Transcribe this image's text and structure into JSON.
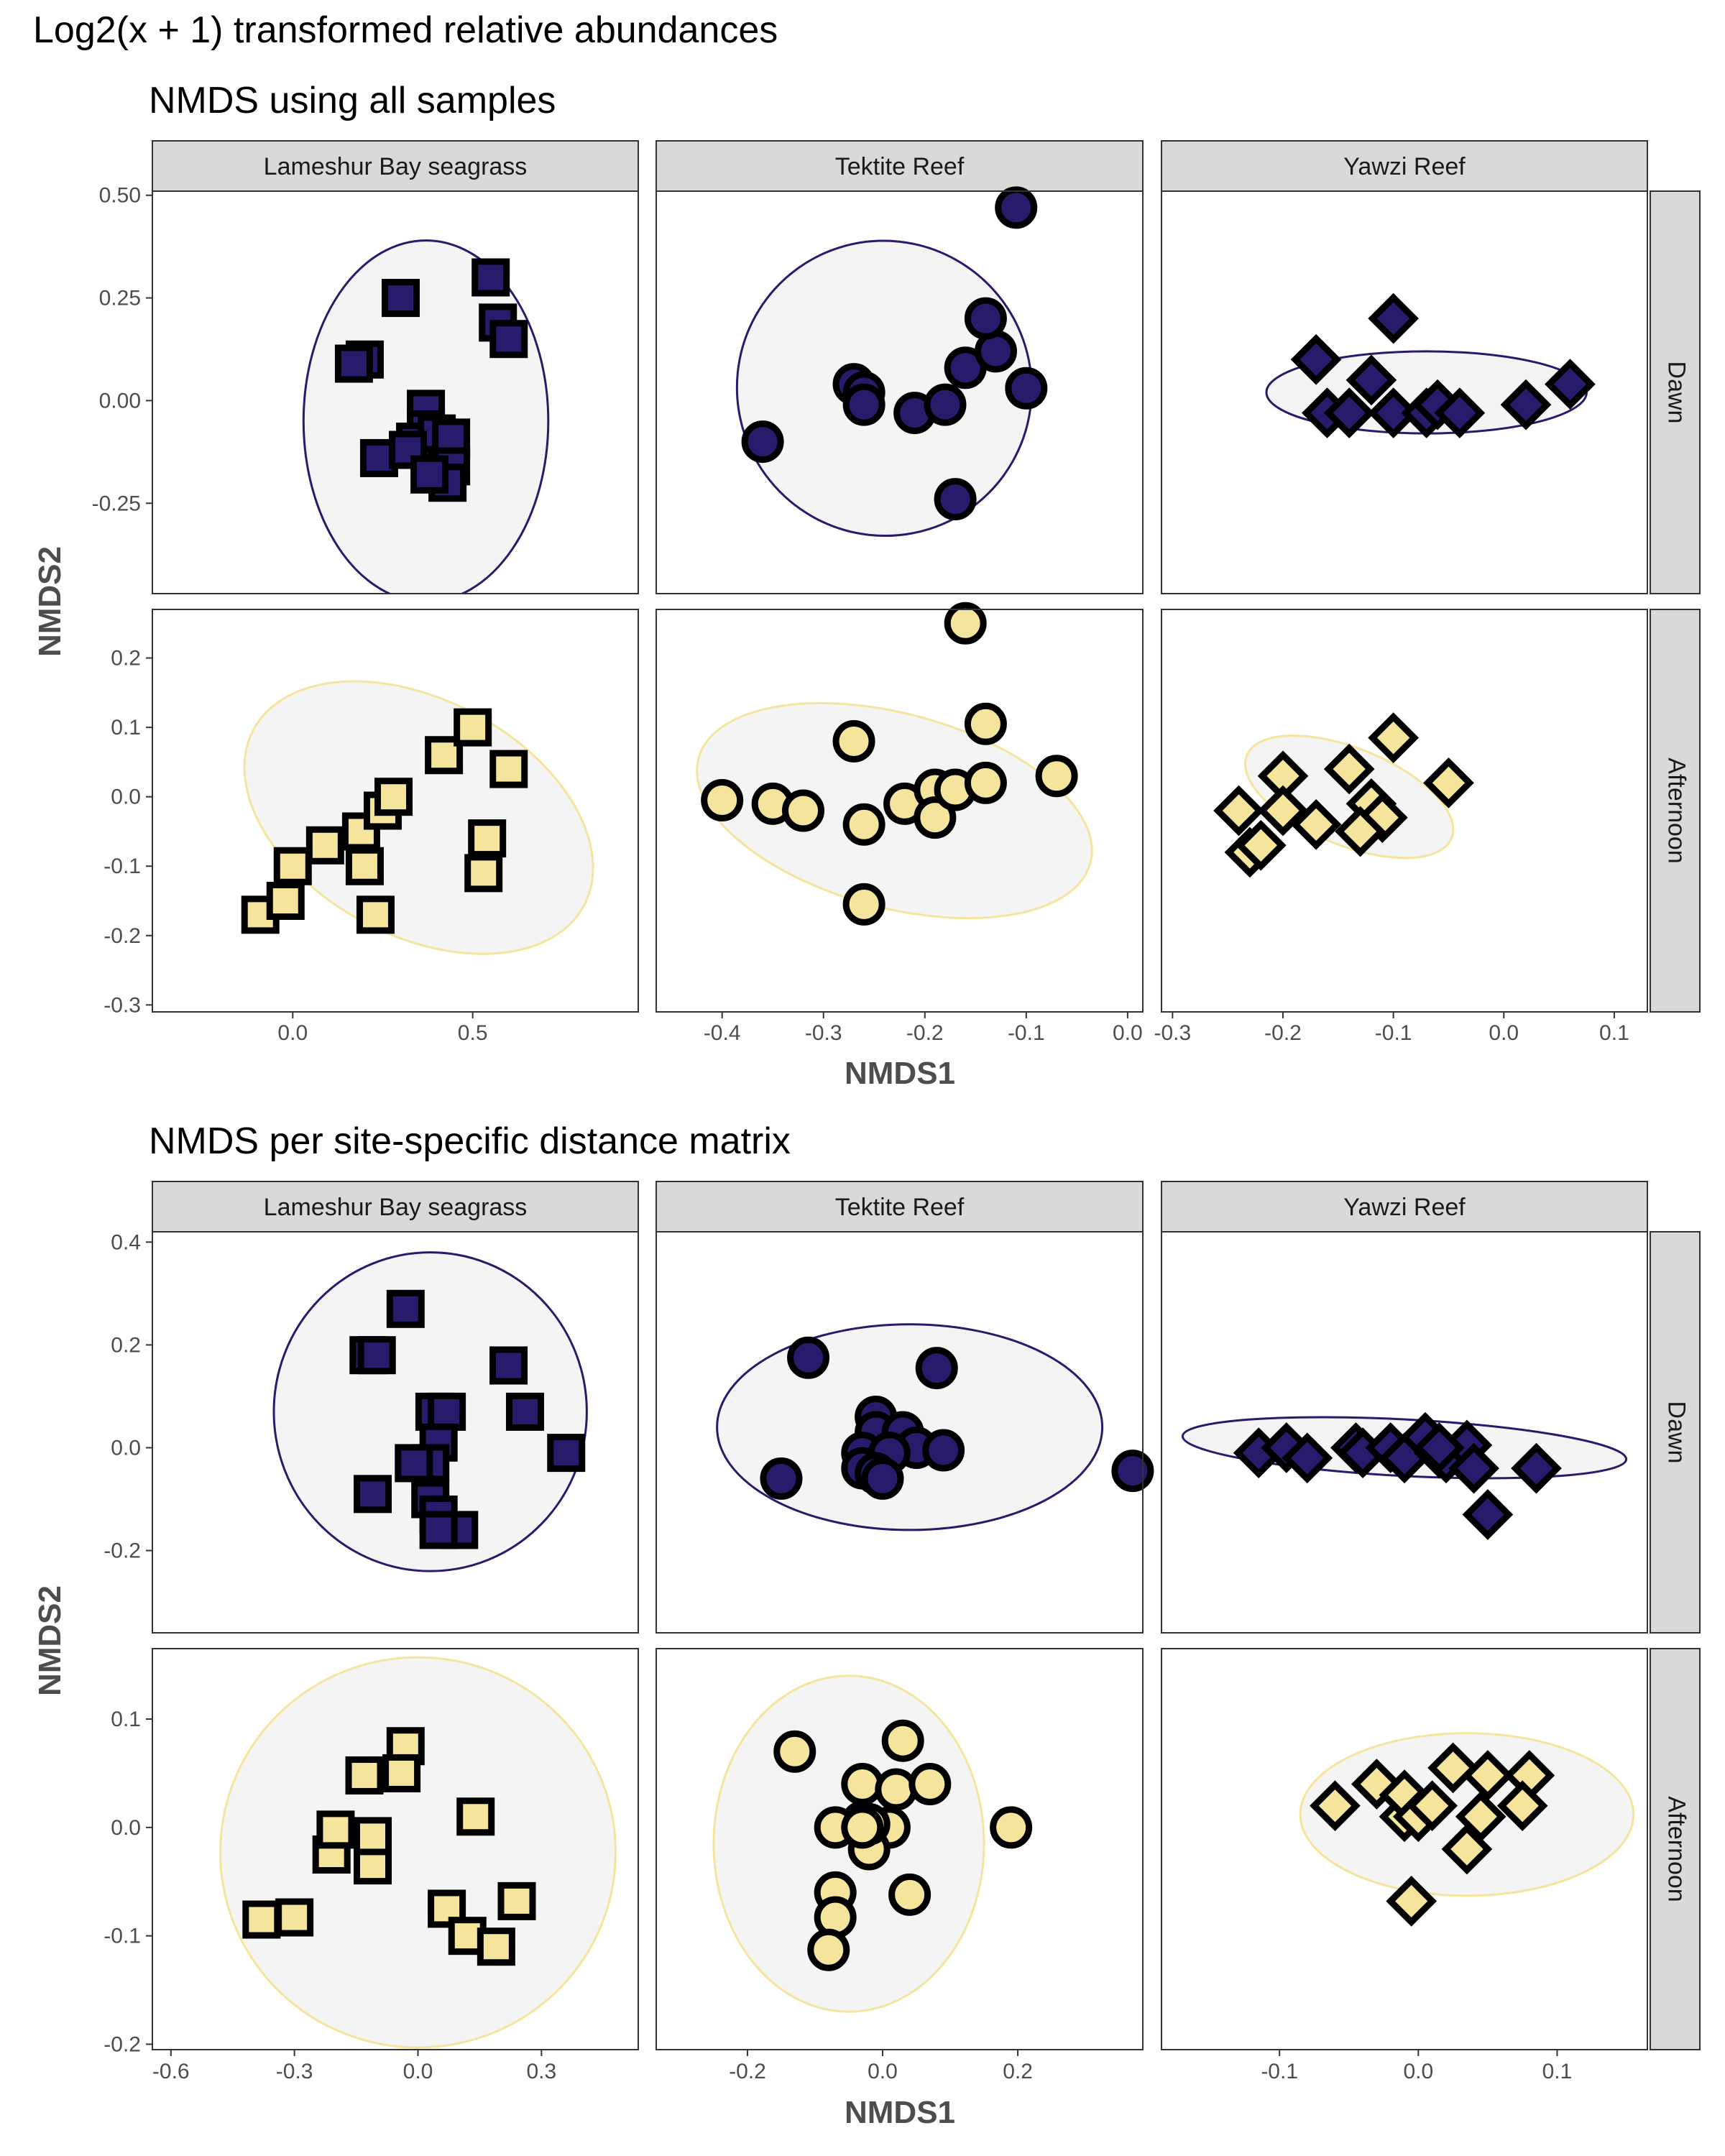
{
  "figure": {
    "title": "Log2(x + 1) transformed relative abundances",
    "colors": {
      "Dawn": "#2a1a6b",
      "Afternoon": "#f5e49c",
      "ellipse_fill": "#f4f4f4",
      "strip_bg": "#d9d9d9",
      "point_stroke": "#000000"
    }
  },
  "chart_data": [
    {
      "type": "scatter",
      "title": "NMDS using all samples",
      "xlabel": "NMDS1",
      "ylabel": "NMDS2",
      "columns": [
        "Lameshur Bay seagrass",
        "Tektite Reef",
        "Yawzi Reef"
      ],
      "rows": [
        "Dawn",
        "Afternoon"
      ],
      "x_axes": [
        {
          "lim": [
            -0.39,
            0.96
          ],
          "ticks": [
            0.0,
            0.5
          ],
          "tick_labels": [
            "0.0",
            "0.5"
          ]
        },
        {
          "lim": [
            -0.465,
            0.015
          ],
          "ticks": [
            -0.4,
            -0.3,
            -0.2,
            -0.1,
            0.0
          ],
          "tick_labels": [
            "-0.4",
            "-0.3",
            "-0.2",
            "-0.1",
            "0.0"
          ]
        },
        {
          "lim": [
            -0.31,
            0.13
          ],
          "ticks": [
            -0.3,
            -0.2,
            -0.1,
            0.0,
            0.1
          ],
          "tick_labels": [
            "-0.3",
            "-0.2",
            "-0.1",
            "0.0",
            "0.1"
          ]
        }
      ],
      "y_axes": [
        {
          "lim": [
            -0.47,
            0.51
          ],
          "ticks": [
            0.5,
            0.25,
            0.0,
            -0.25
          ],
          "tick_labels": [
            "0.50",
            "0.25",
            "0.00",
            "-0.25"
          ]
        },
        {
          "lim": [
            -0.31,
            0.27
          ],
          "ticks": [
            0.2,
            0.1,
            0.0,
            -0.1,
            -0.2,
            -0.3
          ],
          "tick_labels": [
            "0.2",
            "0.1",
            "0.0",
            "-0.1",
            "-0.2",
            "-0.3"
          ]
        }
      ],
      "panels": [
        {
          "col": 0,
          "row": 0,
          "marker": "square",
          "ellipse": {
            "cx": 0.37,
            "cy": -0.05,
            "rx": 0.34,
            "ry": 0.44,
            "angle": 0
          },
          "points": [
            [
              0.2,
              0.1
            ],
            [
              0.17,
              0.09
            ],
            [
              0.3,
              0.25
            ],
            [
              0.55,
              0.3
            ],
            [
              0.57,
              0.19
            ],
            [
              0.6,
              0.15
            ],
            [
              0.24,
              -0.14
            ],
            [
              0.37,
              -0.02
            ],
            [
              0.37,
              -0.07
            ],
            [
              0.34,
              -0.1
            ],
            [
              0.4,
              -0.08
            ],
            [
              0.32,
              -0.12
            ],
            [
              0.44,
              -0.09
            ],
            [
              0.44,
              -0.16
            ],
            [
              0.43,
              -0.2
            ],
            [
              0.38,
              -0.18
            ]
          ]
        },
        {
          "col": 1,
          "row": 0,
          "marker": "circle",
          "ellipse": {
            "cx": -0.24,
            "cy": 0.03,
            "rx": 0.145,
            "ry": 0.36,
            "angle": 39
          },
          "points": [
            [
              -0.36,
              -0.1
            ],
            [
              -0.27,
              0.04
            ],
            [
              -0.26,
              0.02
            ],
            [
              -0.26,
              -0.01
            ],
            [
              -0.21,
              -0.03
            ],
            [
              -0.18,
              -0.01
            ],
            [
              -0.16,
              0.08
            ],
            [
              -0.13,
              0.12
            ],
            [
              -0.14,
              0.2
            ],
            [
              -0.1,
              0.03
            ],
            [
              -0.17,
              -0.24
            ],
            [
              -0.11,
              0.47
            ]
          ]
        },
        {
          "col": 2,
          "row": 0,
          "marker": "diamond",
          "ellipse": {
            "cx": -0.07,
            "cy": 0.02,
            "rx": 0.145,
            "ry": 0.1,
            "angle": 0
          },
          "points": [
            [
              -0.1,
              0.2
            ],
            [
              -0.17,
              0.1
            ],
            [
              -0.12,
              0.05
            ],
            [
              -0.16,
              -0.03
            ],
            [
              -0.14,
              -0.03
            ],
            [
              -0.1,
              -0.03
            ],
            [
              -0.07,
              -0.03
            ],
            [
              -0.06,
              -0.01
            ],
            [
              -0.04,
              -0.03
            ],
            [
              0.02,
              -0.01
            ],
            [
              0.06,
              0.04
            ]
          ]
        },
        {
          "col": 0,
          "row": 1,
          "marker": "square",
          "ellipse": {
            "cx": 0.35,
            "cy": -0.03,
            "rx": 0.52,
            "ry": 0.17,
            "angle": -28
          },
          "points": [
            [
              -0.09,
              -0.17
            ],
            [
              -0.02,
              -0.15
            ],
            [
              0.0,
              -0.1
            ],
            [
              0.09,
              -0.07
            ],
            [
              0.19,
              -0.05
            ],
            [
              0.2,
              -0.1
            ],
            [
              0.23,
              -0.17
            ],
            [
              0.25,
              -0.02
            ],
            [
              0.28,
              0.0
            ],
            [
              0.42,
              0.06
            ],
            [
              0.5,
              0.1
            ],
            [
              0.6,
              0.04
            ],
            [
              0.54,
              -0.06
            ],
            [
              0.53,
              -0.11
            ]
          ]
        },
        {
          "col": 1,
          "row": 1,
          "marker": "circle",
          "ellipse": {
            "cx": -0.23,
            "cy": -0.02,
            "rx": 0.2,
            "ry": 0.14,
            "angle": -15
          },
          "points": [
            [
              -0.4,
              -0.005
            ],
            [
              -0.35,
              -0.01
            ],
            [
              -0.32,
              -0.02
            ],
            [
              -0.27,
              0.08
            ],
            [
              -0.26,
              -0.04
            ],
            [
              -0.22,
              -0.01
            ],
            [
              -0.19,
              0.01
            ],
            [
              -0.19,
              -0.03
            ],
            [
              -0.17,
              0.01
            ],
            [
              -0.14,
              0.02
            ],
            [
              -0.14,
              0.105
            ],
            [
              -0.16,
              0.25
            ],
            [
              -0.07,
              0.03
            ],
            [
              -0.26,
              -0.155
            ]
          ]
        },
        {
          "col": 2,
          "row": 1,
          "marker": "diamond",
          "ellipse": {
            "cx": -0.14,
            "cy": 0.0,
            "rx": 0.1,
            "ry": 0.07,
            "angle": -22
          },
          "points": [
            [
              -0.24,
              -0.02
            ],
            [
              -0.23,
              -0.08
            ],
            [
              -0.2,
              0.03
            ],
            [
              -0.2,
              -0.02
            ],
            [
              -0.22,
              -0.07
            ],
            [
              -0.17,
              -0.04
            ],
            [
              -0.14,
              0.04
            ],
            [
              -0.12,
              -0.01
            ],
            [
              -0.11,
              -0.03
            ],
            [
              -0.13,
              -0.05
            ],
            [
              -0.1,
              0.085
            ],
            [
              -0.05,
              0.02
            ]
          ]
        }
      ]
    },
    {
      "type": "scatter",
      "title": "NMDS per site-specific distance matrix",
      "xlabel": "NMDS1",
      "ylabel": "NMDS2",
      "columns": [
        "Lameshur Bay seagrass",
        "Tektite Reef",
        "Yawzi Reef"
      ],
      "rows": [
        "Dawn",
        "Afternoon"
      ],
      "x_axes": [
        {
          "lim": [
            -0.645,
            0.535
          ],
          "ticks": [
            -0.6,
            -0.3,
            0.0,
            0.3
          ],
          "tick_labels": [
            "-0.6",
            "-0.3",
            "0.0",
            "0.3"
          ]
        },
        {
          "lim": [
            -0.335,
            0.385
          ],
          "ticks": [
            -0.2,
            0.0,
            0.2
          ],
          "tick_labels": [
            "-0.2",
            "0.0",
            "0.2"
          ]
        },
        {
          "lim": [
            -0.185,
            0.165
          ],
          "ticks": [
            -0.1,
            0.0,
            0.1
          ],
          "tick_labels": [
            "-0.1",
            "0.0",
            "0.1"
          ]
        }
      ],
      "y_axes": [
        {
          "lim": [
            -0.36,
            0.42
          ],
          "ticks": [
            0.4,
            0.2,
            0.0,
            -0.2
          ],
          "tick_labels": [
            "0.4",
            "0.2",
            "0.0",
            "-0.2"
          ]
        },
        {
          "lim": [
            -0.205,
            0.165
          ],
          "ticks": [
            0.1,
            0.0,
            -0.1,
            -0.2
          ],
          "tick_labels": [
            "0.1",
            "0.0",
            "-0.1",
            "-0.2"
          ]
        }
      ],
      "panels": [
        {
          "col": 0,
          "row": 0,
          "marker": "square",
          "ellipse": {
            "cx": 0.03,
            "cy": 0.07,
            "rx": 0.38,
            "ry": 0.31,
            "angle": 0
          },
          "points": [
            [
              -0.03,
              0.27
            ],
            [
              -0.12,
              0.18
            ],
            [
              -0.1,
              0.18
            ],
            [
              0.04,
              0.07
            ],
            [
              0.07,
              0.07
            ],
            [
              0.05,
              0.01
            ],
            [
              0.03,
              -0.03
            ],
            [
              -0.01,
              -0.03
            ],
            [
              0.03,
              -0.1
            ],
            [
              0.05,
              -0.13
            ],
            [
              0.1,
              -0.16
            ],
            [
              0.05,
              -0.16
            ],
            [
              -0.11,
              -0.09
            ],
            [
              0.22,
              0.16
            ],
            [
              0.26,
              0.07
            ],
            [
              0.36,
              -0.01
            ]
          ]
        },
        {
          "col": 1,
          "row": 0,
          "marker": "circle",
          "ellipse": {
            "cx": 0.04,
            "cy": 0.04,
            "rx": 0.285,
            "ry": 0.2,
            "angle": 0
          },
          "points": [
            [
              -0.11,
              0.175
            ],
            [
              0.08,
              0.155
            ],
            [
              -0.01,
              0.06
            ],
            [
              -0.01,
              0.03
            ],
            [
              0.03,
              0.03
            ],
            [
              0.05,
              0.0
            ],
            [
              -0.03,
              -0.01
            ],
            [
              0.01,
              -0.01
            ],
            [
              0.09,
              -0.005
            ],
            [
              -0.03,
              -0.04
            ],
            [
              -0.01,
              -0.05
            ],
            [
              0.0,
              -0.06
            ],
            [
              -0.15,
              -0.06
            ],
            [
              0.37,
              -0.045
            ]
          ]
        },
        {
          "col": 2,
          "row": 0,
          "marker": "diamond",
          "ellipse": {
            "cx": -0.01,
            "cy": 0.0,
            "rx": 0.16,
            "ry": 0.055,
            "angle": -3
          },
          "points": [
            [
              -0.115,
              -0.01
            ],
            [
              -0.095,
              0.0
            ],
            [
              -0.08,
              -0.02
            ],
            [
              -0.045,
              0.0
            ],
            [
              -0.04,
              -0.01
            ],
            [
              -0.02,
              0.0
            ],
            [
              -0.01,
              -0.02
            ],
            [
              0.005,
              0.02
            ],
            [
              0.015,
              -0.01
            ],
            [
              0.02,
              -0.02
            ],
            [
              0.035,
              0.005
            ],
            [
              0.04,
              -0.04
            ],
            [
              0.015,
              0.0
            ],
            [
              0.085,
              -0.04
            ],
            [
              0.05,
              -0.13
            ]
          ]
        },
        {
          "col": 0,
          "row": 1,
          "marker": "square",
          "ellipse": {
            "cx": 0.0,
            "cy": -0.023,
            "rx": 0.48,
            "ry": 0.18,
            "angle": 0
          },
          "points": [
            [
              -0.03,
              0.075
            ],
            [
              -0.04,
              0.05
            ],
            [
              -0.13,
              0.048
            ],
            [
              -0.21,
              -0.025
            ],
            [
              -0.2,
              -0.002
            ],
            [
              -0.11,
              -0.035
            ],
            [
              -0.11,
              -0.008
            ],
            [
              -0.38,
              -0.085
            ],
            [
              -0.3,
              -0.083
            ],
            [
              0.14,
              0.01
            ],
            [
              0.07,
              -0.075
            ],
            [
              0.12,
              -0.1
            ],
            [
              0.19,
              -0.11
            ],
            [
              0.24,
              -0.068
            ]
          ]
        },
        {
          "col": 1,
          "row": 1,
          "marker": "circle",
          "ellipse": {
            "cx": -0.05,
            "cy": -0.015,
            "rx": 0.2,
            "ry": 0.155,
            "angle": 0
          },
          "points": [
            [
              -0.13,
              0.07
            ],
            [
              0.03,
              0.08
            ],
            [
              -0.03,
              0.04
            ],
            [
              0.02,
              0.035
            ],
            [
              0.07,
              0.04
            ],
            [
              -0.03,
              0.005
            ],
            [
              -0.07,
              0.0
            ],
            [
              0.01,
              0.0
            ],
            [
              -0.02,
              -0.02
            ],
            [
              -0.02,
              0.003
            ],
            [
              -0.03,
              0.0
            ],
            [
              0.19,
              0.0
            ],
            [
              -0.07,
              -0.06
            ],
            [
              0.04,
              -0.062
            ],
            [
              -0.07,
              -0.083
            ],
            [
              -0.08,
              -0.113
            ]
          ]
        },
        {
          "col": 2,
          "row": 1,
          "marker": "diamond",
          "ellipse": {
            "cx": 0.035,
            "cy": 0.012,
            "rx": 0.12,
            "ry": 0.075,
            "angle": 0
          },
          "points": [
            [
              -0.06,
              0.02
            ],
            [
              -0.03,
              0.04
            ],
            [
              -0.01,
              0.01
            ],
            [
              -0.01,
              0.03
            ],
            [
              0.0,
              0.01
            ],
            [
              0.01,
              0.02
            ],
            [
              0.025,
              0.055
            ],
            [
              0.05,
              0.048
            ],
            [
              0.045,
              0.01
            ],
            [
              0.08,
              0.048
            ],
            [
              0.075,
              0.02
            ],
            [
              0.035,
              -0.02
            ],
            [
              -0.005,
              -0.068
            ]
          ]
        }
      ]
    }
  ]
}
